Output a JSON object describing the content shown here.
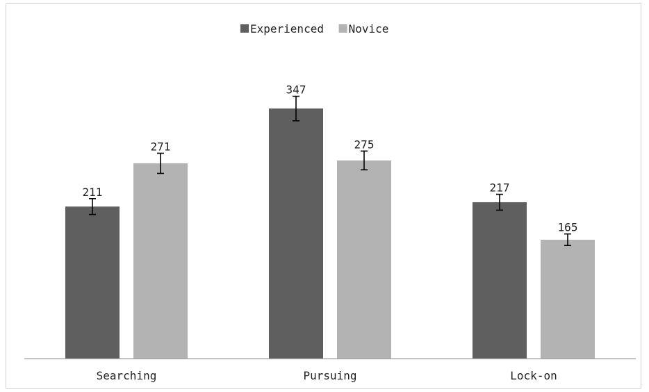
{
  "chart_data": {
    "type": "bar",
    "title": "",
    "xlabel": "",
    "ylabel": "",
    "categories": [
      "Searching",
      "Pursuing",
      "Lock-on"
    ],
    "series": [
      {
        "name": "Experienced",
        "values": [
          211,
          347,
          217
        ],
        "errors": [
          11,
          17,
          11
        ],
        "color": "#5f5f5f"
      },
      {
        "name": "Novice",
        "values": [
          271,
          275,
          165
        ],
        "errors": [
          14,
          13,
          8
        ],
        "color": "#b3b3b3"
      }
    ],
    "ylim": [
      0,
      410
    ],
    "grid": false,
    "legend": "top-center",
    "data_labels": true,
    "error_bars": true
  }
}
